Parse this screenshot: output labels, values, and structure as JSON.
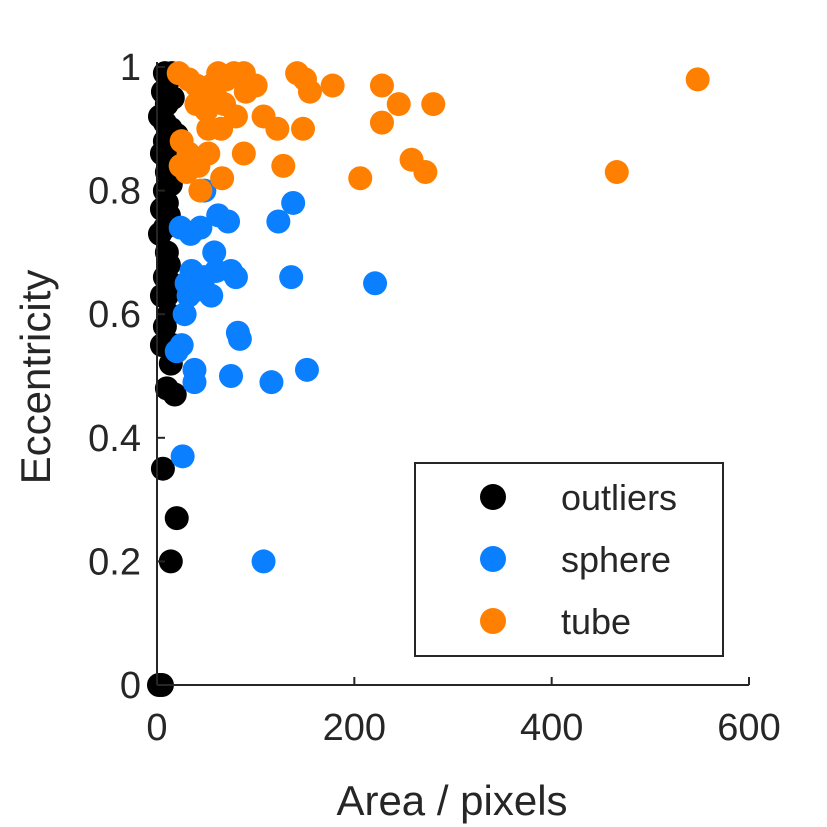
{
  "chart_data": {
    "type": "scatter",
    "xlabel": "Area / pixels",
    "ylabel": "Eccentricity",
    "xlim": [
      0,
      600
    ],
    "ylim": [
      0,
      1
    ],
    "xticks": [
      0,
      200,
      400,
      600
    ],
    "yticks": [
      0,
      0.2,
      0.4,
      0.6,
      0.8,
      1
    ],
    "xtick_labels": [
      "0",
      "200",
      "400",
      "600"
    ],
    "ytick_labels": [
      "0",
      "0.2",
      "0.4",
      "0.6",
      "0.8",
      "1"
    ],
    "grid": false,
    "legend": "bottom-right",
    "series": [
      {
        "name": "outliers",
        "color": "#000000",
        "points": [
          [
            2,
            0
          ],
          [
            5,
            0
          ],
          [
            6,
            0.35
          ],
          [
            14,
            0.2
          ],
          [
            20,
            0.27
          ],
          [
            18,
            0.47
          ],
          [
            10,
            0.48
          ],
          [
            14,
            0.52
          ],
          [
            5,
            0.55
          ],
          [
            16,
            0.55
          ],
          [
            8,
            0.58
          ],
          [
            12,
            0.6
          ],
          [
            5,
            0.63
          ],
          [
            10,
            0.63
          ],
          [
            14,
            0.65
          ],
          [
            8,
            0.66
          ],
          [
            12,
            0.68
          ],
          [
            10,
            0.7
          ],
          [
            3,
            0.73
          ],
          [
            8,
            0.74
          ],
          [
            12,
            0.76
          ],
          [
            5,
            0.77
          ],
          [
            10,
            0.78
          ],
          [
            8,
            0.8
          ],
          [
            14,
            0.81
          ],
          [
            10,
            0.83
          ],
          [
            16,
            0.84
          ],
          [
            5,
            0.86
          ],
          [
            12,
            0.86
          ],
          [
            8,
            0.88
          ],
          [
            3,
            0.92
          ],
          [
            8,
            0.91
          ],
          [
            14,
            0.9
          ],
          [
            20,
            0.89
          ],
          [
            10,
            0.94
          ],
          [
            16,
            0.95
          ],
          [
            6,
            0.96
          ],
          [
            12,
            0.98
          ],
          [
            8,
            0.99
          ],
          [
            15,
            0.99
          ]
        ]
      },
      {
        "name": "sphere",
        "color": "#0a7fff",
        "points": [
          [
            26,
            0.37
          ],
          [
            108,
            0.2
          ],
          [
            38,
            0.49
          ],
          [
            38,
            0.51
          ],
          [
            75,
            0.5
          ],
          [
            116,
            0.49
          ],
          [
            152,
            0.51
          ],
          [
            20,
            0.54
          ],
          [
            25,
            0.55
          ],
          [
            28,
            0.6
          ],
          [
            84,
            0.56
          ],
          [
            82,
            0.57
          ],
          [
            32,
            0.63
          ],
          [
            42,
            0.64
          ],
          [
            55,
            0.63
          ],
          [
            30,
            0.65
          ],
          [
            35,
            0.67
          ],
          [
            48,
            0.66
          ],
          [
            60,
            0.67
          ],
          [
            75,
            0.67
          ],
          [
            80,
            0.66
          ],
          [
            136,
            0.66
          ],
          [
            221,
            0.65
          ],
          [
            58,
            0.7
          ],
          [
            24,
            0.74
          ],
          [
            34,
            0.73
          ],
          [
            44,
            0.74
          ],
          [
            62,
            0.76
          ],
          [
            72,
            0.75
          ],
          [
            123,
            0.75
          ],
          [
            138,
            0.78
          ],
          [
            48,
            0.8
          ]
        ]
      },
      {
        "name": "tube",
        "color": "#ff8000",
        "points": [
          [
            22,
            0.99
          ],
          [
            32,
            0.98
          ],
          [
            40,
            0.97
          ],
          [
            48,
            0.96
          ],
          [
            55,
            0.97
          ],
          [
            62,
            0.99
          ],
          [
            70,
            0.98
          ],
          [
            78,
            0.99
          ],
          [
            88,
            0.99
          ],
          [
            100,
            0.97
          ],
          [
            142,
            0.99
          ],
          [
            150,
            0.98
          ],
          [
            155,
            0.96
          ],
          [
            178,
            0.97
          ],
          [
            228,
            0.97
          ],
          [
            548,
            0.98
          ],
          [
            40,
            0.94
          ],
          [
            50,
            0.93
          ],
          [
            60,
            0.95
          ],
          [
            68,
            0.94
          ],
          [
            80,
            0.92
          ],
          [
            90,
            0.96
          ],
          [
            52,
            0.9
          ],
          [
            65,
            0.9
          ],
          [
            108,
            0.92
          ],
          [
            122,
            0.9
          ],
          [
            148,
            0.9
          ],
          [
            228,
            0.91
          ],
          [
            245,
            0.94
          ],
          [
            280,
            0.94
          ],
          [
            25,
            0.88
          ],
          [
            32,
            0.86
          ],
          [
            42,
            0.84
          ],
          [
            52,
            0.86
          ],
          [
            88,
            0.86
          ],
          [
            24,
            0.84
          ],
          [
            30,
            0.83
          ],
          [
            44,
            0.8
          ],
          [
            66,
            0.82
          ],
          [
            128,
            0.84
          ],
          [
            206,
            0.82
          ],
          [
            258,
            0.85
          ],
          [
            272,
            0.83
          ],
          [
            466,
            0.83
          ]
        ]
      }
    ]
  }
}
